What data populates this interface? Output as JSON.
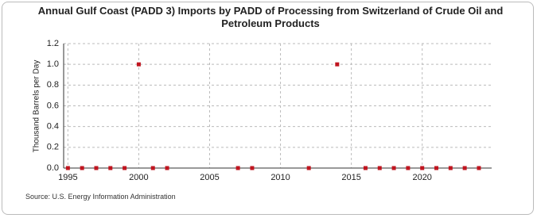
{
  "chart_data": {
    "type": "scatter",
    "title": "Annual Gulf Coast (PADD 3) Imports by PADD of Processing from Switzerland of Crude Oil and Petroleum Products",
    "y_label": "Thousand Barrels per Day",
    "source": "Source: U.S. Energy Information Administration",
    "x": [
      1995,
      1996,
      1997,
      1998,
      1999,
      2000,
      2001,
      2002,
      2007,
      2008,
      2012,
      2014,
      2016,
      2017,
      2018,
      2019,
      2020,
      2021,
      2022,
      2023,
      2024
    ],
    "values": [
      0,
      0,
      0,
      0,
      0,
      1,
      0,
      0,
      0,
      0,
      0,
      1,
      0,
      0,
      0,
      0,
      0,
      0,
      0,
      0,
      0
    ],
    "color": "#c0151f",
    "xlim": [
      1994.7,
      2024.9
    ],
    "xticks": [
      1995,
      2000,
      2005,
      2010,
      2015,
      2020
    ],
    "ylim": [
      0,
      1.2
    ],
    "yticks": [
      {
        "value": 0,
        "label": "0.0"
      },
      0.2,
      0.4,
      0.6,
      0.8,
      {
        "value": 1,
        "label": "1.0"
      },
      1.2
    ],
    "grid": true
  }
}
